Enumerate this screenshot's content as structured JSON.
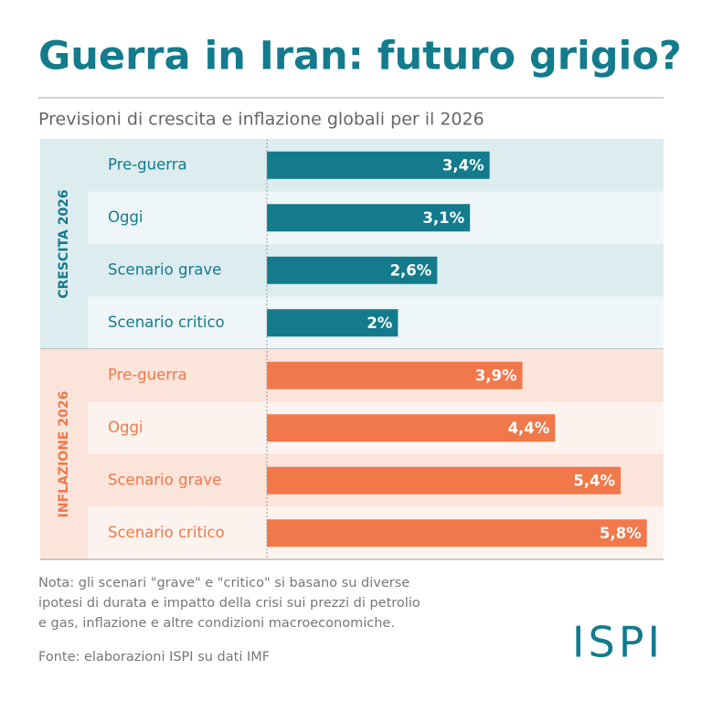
{
  "header": {
    "title": "Guerra in Iran: futuro grigio?",
    "subtitle": "Previsioni di crescita e inflazione globali per il 2026"
  },
  "chart_data": [
    {
      "type": "bar",
      "orientation": "horizontal",
      "group": "CRESCITA 2026",
      "color": "#137b8c",
      "categories": [
        "Pre-guerra",
        "Oggi",
        "Scenario grave",
        "Scenario critico"
      ],
      "values": [
        3.4,
        3.1,
        2.6,
        2
      ],
      "value_labels": [
        "3,4%",
        "3,1%",
        "2,6%",
        "2%"
      ],
      "xlim": [
        0,
        6
      ]
    },
    {
      "type": "bar",
      "orientation": "horizontal",
      "group": "INFLAZIONE 2026",
      "color": "#f0784a",
      "categories": [
        "Pre-guerra",
        "Oggi",
        "Scenario grave",
        "Scenario critico"
      ],
      "values": [
        3.9,
        4.4,
        5.4,
        5.8
      ],
      "value_labels": [
        "3,9%",
        "4,4%",
        "5,4%",
        "5,8%"
      ],
      "xlim": [
        0,
        6
      ]
    }
  ],
  "footer": {
    "note": [
      "Nota: gli scenari \"grave\" e \"critico\" si basano su diverse",
      "ipotesi di durata e impatto della crisi sui prezzi di petrolio",
      "e gas, inflazione e altre condizioni macroeconomiche."
    ],
    "source": "Fonte: elaborazioni ISPI su dati IMF",
    "logo": "ISPI"
  }
}
